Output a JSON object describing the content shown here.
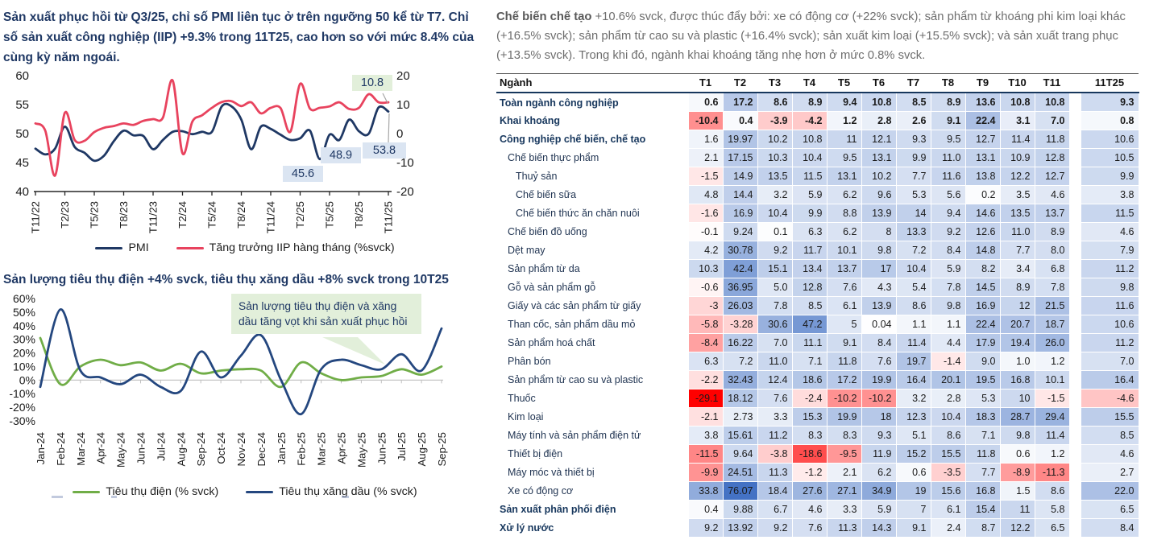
{
  "right": {
    "paragraph_lead": "Chế biến chế tạo",
    "paragraph_rest": "+10.6% svck, được thúc đẩy bởi: xe có động cơ (+22% svck); sản phẩm từ khoáng phi kim loại khác (+16.5% svck); sản phẩm từ cao su và plastic (+16.4% svck); sản xuất kim loại (+15.5% svck); và sản xuất trang phục (+13.5% svck). Trong khi đó, ngành khai khoáng tăng nhẹ hơn ở mức 0.8% svck."
  },
  "chart_data": [
    {
      "type": "line",
      "title": "Sản xuất phục hồi từ Q3/25, chỉ số PMI liên tục ở trên ngưỡng 50 kể từ T7. Chỉ số sản xuất công nghiệp (IIP) +9.3% trong 11T25, cao hơn so với mức 8.4% của cùng kỳ năm ngoái.",
      "x_ticks": [
        "T11/22",
        "T2/23",
        "T5/23",
        "T8/23",
        "T11/23",
        "T2/24",
        "T5/24",
        "T8/24",
        "T11/24",
        "T2/25",
        "T5/25",
        "T8/25",
        "T11/25"
      ],
      "left_axis": {
        "ticks": [
          60,
          55,
          50,
          45,
          40
        ],
        "range": [
          40,
          60
        ]
      },
      "right_axis": {
        "ticks": [
          20,
          10,
          0,
          -10,
          -20
        ],
        "range": [
          -20,
          20
        ]
      },
      "grid": false,
      "legend_position": "bottom",
      "series": [
        {
          "name": "PMI",
          "axis": "left",
          "color": "#1f3864",
          "values": [
            47.4,
            46.4,
            47.4,
            51.2,
            47.7,
            46.7,
            45.3,
            46.2,
            48.7,
            50.5,
            49.7,
            49.6,
            47.3,
            48.9,
            50.3,
            50.4,
            49.9,
            50.3,
            50.3,
            54.7,
            54.7,
            52.4,
            47.3,
            51.2,
            50.8,
            49.8,
            48.9,
            49.2,
            50.5,
            45.6,
            49.8,
            48.9,
            52.4,
            50.4,
            50.0,
            54.5,
            53.8
          ]
        },
        {
          "name": "Tăng trưởng IIP hàng tháng (%svck)",
          "axis": "right",
          "color": "#e8435e",
          "values": [
            3.5,
            1.0,
            -14.5,
            7.2,
            -2.2,
            -2.5,
            0.5,
            2.0,
            2.6,
            3.5,
            3.0,
            4.4,
            5.0,
            5.5,
            18.3,
            -6.8,
            4.1,
            6.3,
            8.9,
            10.9,
            11.2,
            9.5,
            10.8,
            7.0,
            8.9,
            8.8,
            0.6,
            17.2,
            8.6,
            8.9,
            9.4,
            10.8,
            8.5,
            8.9,
            13.6,
            10.8,
            10.8
          ]
        }
      ],
      "annotations": [
        {
          "text": "10.8",
          "note": "last IIP value"
        },
        {
          "text": "53.8",
          "note": "last PMI value"
        },
        {
          "text": "48.9",
          "note": "PMI Jun-25"
        },
        {
          "text": "45.6",
          "note": "PMI Apr-25"
        }
      ]
    },
    {
      "type": "line",
      "title": "Sản lượng tiêu thụ điện +4% svck, tiêu thụ xăng dầu +8% svck trong 10T25",
      "callout": "Sản lượng tiêu thụ điện và xăng dầu tăng vọt khi sản xuất phục hồi",
      "x_ticks": [
        "Jan-24",
        "Feb-24",
        "Mar-24",
        "Apr-24",
        "May-24",
        "Jun-24",
        "Jul-24",
        "Aug-24",
        "Sep-24",
        "Oct-24",
        "Nov-24",
        "Dec-24",
        "Jan-25",
        "Feb-25",
        "Mar-25",
        "Apr-25",
        "May-25",
        "Jun-25",
        "Jul-25",
        "Aug-25",
        "Sep-25"
      ],
      "y_axis": {
        "ticks": [
          "60%",
          "50%",
          "40%",
          "30%",
          "20%",
          "10%",
          "0%",
          "-10%",
          "-20%",
          "-30%"
        ],
        "range": [
          -30,
          60
        ]
      },
      "grid": false,
      "legend_position": "bottom",
      "series": [
        {
          "name": "Tiêu thụ điện (% svck)",
          "color": "#70ad47",
          "values": [
            31,
            -3,
            10,
            15,
            11,
            13,
            7,
            12,
            5,
            7,
            8,
            7,
            -5,
            13,
            5,
            0,
            2,
            3,
            8,
            4,
            10
          ]
        },
        {
          "name": "Tiêu thụ xăng dầu (% svck)",
          "color": "#24477f",
          "values": [
            -5,
            52,
            7,
            2,
            -3,
            4,
            -5,
            -8,
            21,
            2,
            18,
            33,
            0,
            -25,
            8,
            15,
            11,
            8,
            19,
            7,
            38
          ]
        }
      ]
    },
    {
      "type": "table",
      "heat": {
        "min": -29.1,
        "max": 76.07,
        "positive": "#4472c4",
        "negative": "#ff0000"
      },
      "columns": [
        "Ngành",
        "T1",
        "T2",
        "T3",
        "T4",
        "T5",
        "T6",
        "T7",
        "T8",
        "T9",
        "T10",
        "T11",
        "11T25"
      ],
      "rows": [
        {
          "label": "Toàn ngành công nghiệp",
          "indent": 0,
          "bold": true,
          "bold_values": true,
          "values": [
            "0.6",
            "17.2",
            "8.6",
            "8.9",
            "9.4",
            "10.8",
            "8.5",
            "8.9",
            "13.6",
            "10.8",
            "10.8"
          ],
          "total": "9.3"
        },
        {
          "label": "Khai khoáng",
          "indent": 0,
          "bold": true,
          "bold_values": true,
          "values": [
            "-10.4",
            "0.4",
            "-3.9",
            "-4.2",
            "1.2",
            "2.8",
            "2.6",
            "9.1",
            "22.4",
            "3.1",
            "7.0"
          ],
          "total": "0.8"
        },
        {
          "label": "Công nghiệp chế biến, chế tạo",
          "indent": 0,
          "bold": true,
          "bold_values": false,
          "values": [
            "1.6",
            "19.97",
            "10.2",
            "10.8",
            "11",
            "12.1",
            "9.3",
            "9.5",
            "12.7",
            "11.4",
            "11.8"
          ],
          "total": "10.6"
        },
        {
          "label": "Chế biến thực phẩm",
          "indent": 1,
          "bold": false,
          "bold_values": false,
          "values": [
            "2.1",
            "17.15",
            "10.3",
            "10.4",
            "9.5",
            "13.1",
            "9.9",
            "11.0",
            "13.1",
            "10.9",
            "12.8"
          ],
          "total": "10.5"
        },
        {
          "label": "Thuỷ sản",
          "indent": 2,
          "bold": false,
          "bold_values": false,
          "values": [
            "-1.5",
            "14.9",
            "13.5",
            "11.5",
            "13.1",
            "10.2",
            "7.7",
            "11.6",
            "13.8",
            "12.2",
            "12.7"
          ],
          "total": "9.9"
        },
        {
          "label": "Chế biến sữa",
          "indent": 2,
          "bold": false,
          "bold_values": false,
          "values": [
            "4.8",
            "14.4",
            "3.2",
            "5.9",
            "6.2",
            "9.6",
            "5.3",
            "5.6",
            "0.2",
            "3.5",
            "4.6"
          ],
          "total": "3.8"
        },
        {
          "label": "Chế biến thức ăn chăn nuôi",
          "indent": 2,
          "bold": false,
          "bold_values": false,
          "values": [
            "-1.6",
            "16.9",
            "10.4",
            "9.9",
            "8.8",
            "13.9",
            "14",
            "9.4",
            "14.6",
            "13.5",
            "13.7"
          ],
          "total": "11.5"
        },
        {
          "label": "Chế biến đồ uống",
          "indent": 1,
          "bold": false,
          "bold_values": false,
          "values": [
            "-0.1",
            "9.24",
            "0.1",
            "6.3",
            "6.2",
            "8",
            "13.3",
            "9.2",
            "12.6",
            "11.0",
            "8.9"
          ],
          "total": "4.6"
        },
        {
          "label": "Dệt may",
          "indent": 1,
          "bold": false,
          "bold_values": false,
          "values": [
            "4.2",
            "30.78",
            "9.2",
            "11.7",
            "10.1",
            "9.8",
            "7.2",
            "8.4",
            "14.8",
            "7.7",
            "8.0"
          ],
          "total": "7.9"
        },
        {
          "label": "Sản phẩm từ da",
          "indent": 1,
          "bold": false,
          "bold_values": false,
          "values": [
            "10.3",
            "42.4",
            "15.1",
            "13.4",
            "13.7",
            "17",
            "10.4",
            "5.9",
            "8.2",
            "3.4",
            "6.8"
          ],
          "total": "11.2"
        },
        {
          "label": "Gỗ và sản phẩm gỗ",
          "indent": 1,
          "bold": false,
          "bold_values": false,
          "values": [
            "-0.6",
            "36.95",
            "5.0",
            "12.8",
            "7.6",
            "4.3",
            "5.4",
            "7.8",
            "14.5",
            "8.9",
            "7.8"
          ],
          "total": "9.8"
        },
        {
          "label": "Giấy và các sản phẩm từ giấy",
          "indent": 1,
          "bold": false,
          "bold_values": false,
          "values": [
            "-3",
            "26.03",
            "7.8",
            "8.5",
            "6.1",
            "13.9",
            "8.6",
            "9.8",
            "16.9",
            "12",
            "21.5"
          ],
          "total": "11.6"
        },
        {
          "label": "Than cốc, sản phẩm dầu mỏ",
          "indent": 1,
          "bold": false,
          "bold_values": false,
          "values": [
            "-5.8",
            "-3.28",
            "30.6",
            "47.2",
            "5",
            "0.04",
            "1.1",
            "1.1",
            "22.4",
            "20.7",
            "18.7"
          ],
          "total": "10.6"
        },
        {
          "label": "Sản phẩm hoá chất",
          "indent": 1,
          "bold": false,
          "bold_values": false,
          "values": [
            "-8.4",
            "16.22",
            "7.0",
            "11.1",
            "9.1",
            "8.4",
            "11.4",
            "4.4",
            "17.9",
            "19.4",
            "26.0"
          ],
          "total": "11.2"
        },
        {
          "label": "Phân bón",
          "indent": 1,
          "bold": false,
          "bold_values": false,
          "values": [
            "6.3",
            "7.2",
            "11.0",
            "7.1",
            "11.8",
            "7.6",
            "19.7",
            "-1.4",
            "9.0",
            "1.0",
            "1.2"
          ],
          "total": "7.0"
        },
        {
          "label": "Sản phẩm từ cao su và plastic",
          "indent": 1,
          "bold": false,
          "bold_values": false,
          "values": [
            "-2.2",
            "32.43",
            "12.4",
            "18.6",
            "17.2",
            "19.9",
            "16.4",
            "20.1",
            "19.5",
            "16.8",
            "10.1"
          ],
          "total": "16.4"
        },
        {
          "label": "Thuốc",
          "indent": 1,
          "bold": false,
          "bold_values": false,
          "values": [
            "-29.1",
            "18.12",
            "7.6",
            "-2.4",
            "-10.2",
            "-10.2",
            "3.2",
            "2.8",
            "5.3",
            "10",
            "-1.5"
          ],
          "total": "-4.6"
        },
        {
          "label": "Kim loại",
          "indent": 1,
          "bold": false,
          "bold_values": false,
          "values": [
            "-2.1",
            "2.73",
            "3.3",
            "15.3",
            "19.9",
            "18",
            "12.3",
            "10.4",
            "18.3",
            "28.7",
            "29.4"
          ],
          "total": "15.5"
        },
        {
          "label": "Máy tính và sản phẩm điện tử",
          "indent": 1,
          "bold": false,
          "bold_values": false,
          "values": [
            "3.8",
            "15.61",
            "11.2",
            "8.3",
            "8.3",
            "9.3",
            "5.1",
            "8.6",
            "7.1",
            "9.8",
            "11.4"
          ],
          "total": "8.5"
        },
        {
          "label": "Thiết bị điện",
          "indent": 1,
          "bold": false,
          "bold_values": false,
          "values": [
            "-11.5",
            "9.64",
            "-3.8",
            "-18.6",
            "-9.5",
            "11.9",
            "15.2",
            "15.5",
            "11.8",
            "0.6",
            "1.2"
          ],
          "total": "4.6"
        },
        {
          "label": "Máy móc và thiết bị",
          "indent": 1,
          "bold": false,
          "bold_values": false,
          "values": [
            "-9.9",
            "24.51",
            "11.3",
            "-1.2",
            "2.1",
            "6.2",
            "0.6",
            "-3.5",
            "7.7",
            "-8.9",
            "-11.3"
          ],
          "total": "2.7"
        },
        {
          "label": "Xe có động cơ",
          "indent": 1,
          "bold": false,
          "bold_values": false,
          "values": [
            "33.8",
            "76.07",
            "18.4",
            "27.6",
            "27.1",
            "34.9",
            "19",
            "15.6",
            "16.8",
            "1.5",
            "8.6"
          ],
          "total": "22.0"
        },
        {
          "label": "Sản xuất phân phối điện",
          "indent": 0,
          "bold": true,
          "bold_values": false,
          "values": [
            "0.4",
            "9.88",
            "6.7",
            "4.6",
            "3.3",
            "5.9",
            "7",
            "6.1",
            "15.4",
            "11",
            "5.8"
          ],
          "total": "6.5"
        },
        {
          "label": "Xử lý nước",
          "indent": 0,
          "bold": true,
          "bold_values": false,
          "values": [
            "9.2",
            "13.92",
            "9.2",
            "7.6",
            "11.3",
            "14.3",
            "9.1",
            "2.4",
            "8.7",
            "12.2",
            "6.5"
          ],
          "total": "8.4"
        }
      ]
    }
  ]
}
